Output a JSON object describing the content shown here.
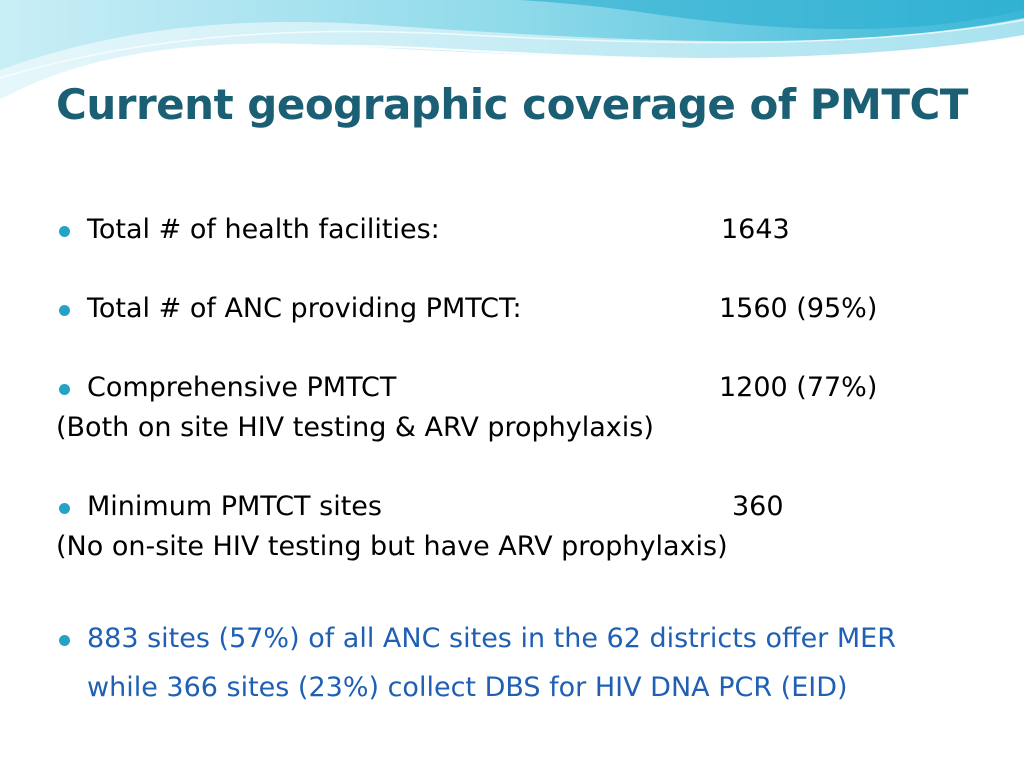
{
  "slide": {
    "title": "Current geographic coverage of PMTCT",
    "items": [
      {
        "label": "Total # of health facilities:",
        "value": "1643"
      },
      {
        "label": "Total # of ANC providing PMTCT:",
        "value": "1560 (95%)"
      },
      {
        "label": "Comprehensive PMTCT",
        "value": "1200 (77%)",
        "note": "(Both on site HIV testing & ARV prophylaxis)"
      },
      {
        "label": "Minimum PMTCT sites",
        "value": "360",
        "note": "(No on-site HIV testing but have ARV prophylaxis)"
      }
    ],
    "highlight": {
      "line1": "883 sites (57%) of all ANC sites in the 62 districts offer MER",
      "line2": "while 366 sites (23%) collect DBS for HIV DNA PCR (EID)"
    }
  },
  "colors": {
    "title": "#1b5f74",
    "bullet": "#25a3c6",
    "highlight_text": "#1f5fb4",
    "wave_light": "#bfe9f3",
    "wave_mid": "#6fcfe4",
    "wave_dark": "#2aaed0"
  },
  "icons": {
    "bullet": "circle-bullet-icon"
  }
}
